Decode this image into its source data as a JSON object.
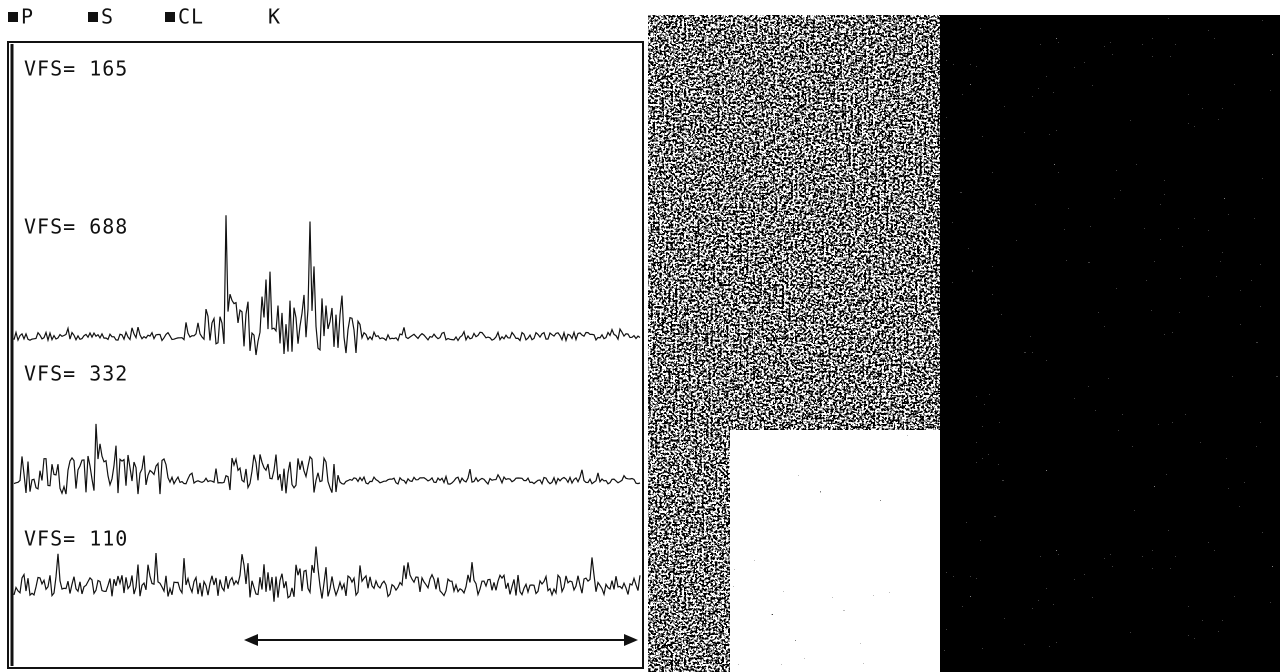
{
  "legend": {
    "items": [
      "P",
      "S",
      "CL",
      "K"
    ]
  },
  "panels": [
    {
      "label": "VFS= 165"
    },
    {
      "label": "VFS= 688"
    },
    {
      "label": "VFS= 332"
    },
    {
      "label": "VFS= 110"
    }
  ]
}
